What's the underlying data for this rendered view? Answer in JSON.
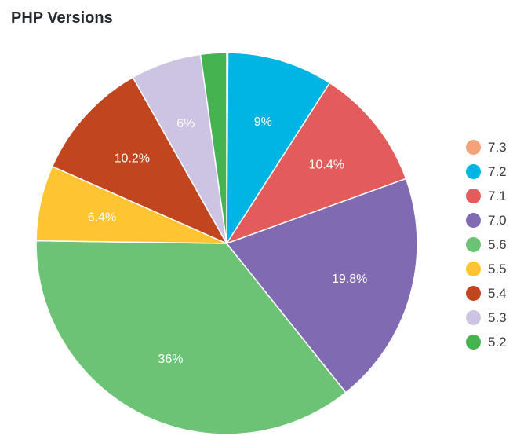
{
  "chart_data": {
    "type": "pie",
    "title": "PHP Versions",
    "slices": [
      {
        "label": "7.3",
        "value": 0.1,
        "color": "#f5a27a",
        "value_label": ""
      },
      {
        "label": "7.2",
        "value": 9,
        "color": "#00b4e4",
        "value_label": "9%"
      },
      {
        "label": "7.1",
        "value": 10.4,
        "color": "#e35b5b",
        "value_label": "10.4%"
      },
      {
        "label": "7.0",
        "value": 19.8,
        "color": "#806bb3",
        "value_label": "19.8%"
      },
      {
        "label": "5.6",
        "value": 36,
        "color": "#6cc375",
        "value_label": "36%"
      },
      {
        "label": "5.5",
        "value": 6.4,
        "color": "#ffc431",
        "value_label": "6.4%"
      },
      {
        "label": "5.4",
        "value": 10.2,
        "color": "#c1461f",
        "value_label": "10.2%"
      },
      {
        "label": "5.3",
        "value": 6,
        "color": "#cdc4e3",
        "value_label": "6%"
      },
      {
        "label": "5.2",
        "value": 2.2,
        "color": "#45b450",
        "value_label": ""
      }
    ],
    "legend_position": "right"
  }
}
